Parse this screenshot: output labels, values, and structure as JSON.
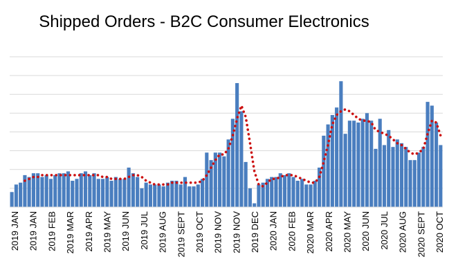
{
  "chart_data": {
    "type": "bar",
    "title": "Shipped Orders - B2C Consumer Electronics",
    "xlabel": "",
    "ylabel": "",
    "ylim": [
      0,
      8
    ],
    "grid": true,
    "bar_color": "#4a7ebf",
    "trend_color": "#cc1111",
    "gridline_color": "#d9d9d9",
    "x_tick_labels": [
      "2019 JAN",
      "2019 JAN",
      "2019 FEB",
      "2019 MAR",
      "2019 APR",
      "2019 MAY",
      "2019 JUN",
      "2019 JUL",
      "2019 AUG",
      "2019 SEPT",
      "2019 OCT",
      "2019 NOV",
      "2019 NOV",
      "2019 DEC",
      "2020 JAN",
      "2020 FEB",
      "2020 MAR",
      "2020 APR",
      "2020 MAY",
      "2020 JUN",
      "2020 JUL",
      "2020 AUG",
      "2020 SEPT",
      "2020 OCT"
    ],
    "values": [
      0.8,
      1.2,
      1.3,
      1.7,
      1.6,
      1.8,
      1.8,
      1.6,
      1.7,
      1.5,
      1.7,
      1.8,
      1.8,
      1.9,
      1.4,
      1.5,
      1.8,
      1.9,
      1.7,
      1.8,
      1.5,
      1.5,
      1.6,
      1.4,
      1.6,
      1.5,
      1.5,
      2.1,
      1.8,
      1.6,
      1.0,
      1.3,
      1.2,
      1.2,
      1.2,
      1.1,
      1.3,
      1.4,
      1.4,
      1.2,
      1.6,
      1.1,
      1.1,
      1.2,
      1.5,
      2.9,
      2.5,
      2.9,
      2.9,
      2.7,
      3.6,
      4.7,
      6.6,
      5.1,
      2.4,
      1.0,
      0.2,
      1.2,
      1.3,
      1.5,
      1.6,
      1.6,
      1.8,
      1.7,
      1.8,
      1.6,
      1.4,
      1.5,
      1.2,
      1.2,
      1.4,
      2.1,
      3.8,
      4.4,
      4.9,
      5.3,
      6.7,
      3.9,
      4.6,
      4.6,
      4.5,
      4.7,
      5.0,
      4.6,
      3.1,
      4.7,
      3.3,
      4.1,
      3.2,
      3.6,
      3.4,
      3.2,
      2.5,
      2.5,
      2.9,
      3.2,
      5.6,
      5.4,
      4.5,
      3.3
    ],
    "series": [
      {
        "type": "line",
        "style": "dotted",
        "values": [
          null,
          null,
          null,
          1.4,
          1.5,
          1.6,
          1.6,
          1.7,
          1.7,
          1.7,
          1.7,
          1.7,
          1.7,
          1.7,
          1.7,
          1.7,
          1.7,
          1.7,
          1.7,
          1.7,
          1.7,
          1.6,
          1.6,
          1.5,
          1.5,
          1.5,
          1.5,
          1.6,
          1.7,
          1.7,
          1.6,
          1.4,
          1.3,
          1.2,
          1.2,
          1.2,
          1.2,
          1.3,
          1.3,
          1.3,
          1.3,
          1.3,
          1.3,
          1.3,
          1.4,
          1.7,
          2.1,
          2.5,
          2.8,
          2.8,
          3.1,
          3.8,
          4.7,
          5.4,
          4.8,
          3.4,
          1.9,
          1.2,
          1.1,
          1.3,
          1.5,
          1.5,
          1.6,
          1.7,
          1.7,
          1.7,
          1.6,
          1.5,
          1.4,
          1.3,
          1.3,
          1.6,
          2.4,
          3.3,
          4.4,
          4.9,
          5.1,
          5.2,
          5.1,
          4.9,
          4.7,
          4.6,
          4.6,
          4.5,
          4.1,
          4.0,
          3.9,
          3.8,
          3.6,
          3.4,
          3.3,
          3.1,
          2.9,
          2.8,
          2.9,
          3.1,
          3.9,
          4.6,
          4.5,
          3.8
        ]
      }
    ]
  }
}
